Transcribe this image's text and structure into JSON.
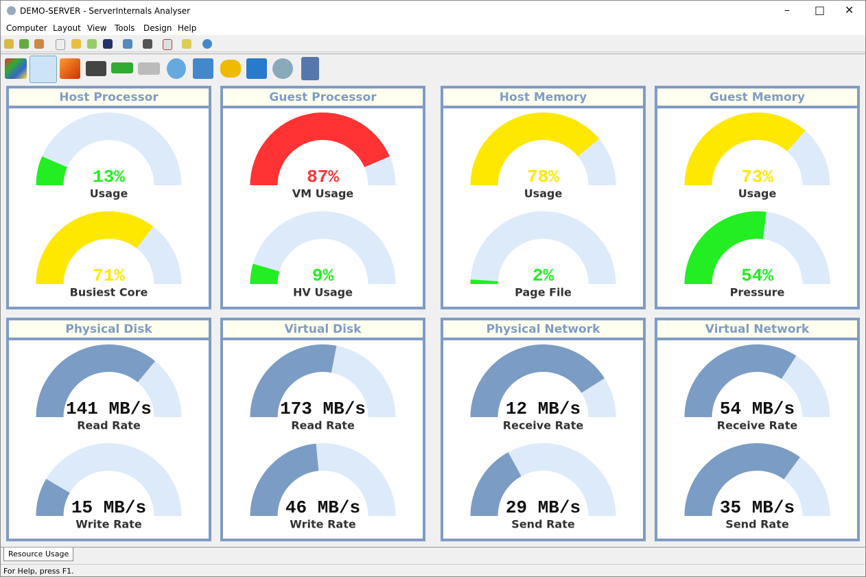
{
  "window": {
    "title": "DEMO-SERVER - ServerInternals Analyser"
  },
  "menu": [
    "Computer",
    "Layout",
    "View",
    "Tools",
    "Design",
    "Help"
  ],
  "panels": [
    {
      "title": "Host Processor",
      "gauges": [
        {
          "value": 13,
          "value_label": "13%",
          "label": "Usage",
          "color": "#22ee22",
          "text_color": "#22ee22"
        },
        {
          "value": 71,
          "value_label": "71%",
          "label": "Busiest Core",
          "color": "#ffe800",
          "text_color": "#ffe800"
        }
      ]
    },
    {
      "title": "Guest Processor",
      "gauges": [
        {
          "value": 87,
          "value_label": "87%",
          "label": "VM Usage",
          "color": "#ff3333",
          "text_color": "#ff3333"
        },
        {
          "value": 9,
          "value_label": "9%",
          "label": "HV Usage",
          "color": "#22ee22",
          "text_color": "#22ee22"
        }
      ]
    },
    {
      "title": "Host Memory",
      "gauges": [
        {
          "value": 78,
          "value_label": "78%",
          "label": "Usage",
          "color": "#ffe800",
          "text_color": "#ffe800"
        },
        {
          "value": 2,
          "value_label": "2%",
          "label": "Page File",
          "color": "#22ee22",
          "text_color": "#22ee22"
        }
      ]
    },
    {
      "title": "Guest Memory",
      "gauges": [
        {
          "value": 73,
          "value_label": "73%",
          "label": "Usage",
          "color": "#ffe800",
          "text_color": "#ffe800"
        },
        {
          "value": 54,
          "value_label": "54%",
          "label": "Pressure",
          "color": "#22ee22",
          "text_color": "#22ee22"
        }
      ]
    },
    {
      "title": "Physical Disk",
      "gauges": [
        {
          "value": 141,
          "value_label": "141 MB/s",
          "label": "Read Rate",
          "fill": 72,
          "color": "#7b9cc4",
          "text_color": "#111111"
        },
        {
          "value": 15,
          "value_label": "15 MB/s",
          "label": "Write Rate",
          "fill": 17,
          "color": "#7b9cc4",
          "text_color": "#111111"
        }
      ]
    },
    {
      "title": "Virtual Disk",
      "gauges": [
        {
          "value": 173,
          "value_label": "173 MB/s",
          "label": "Read Rate",
          "fill": 56,
          "color": "#7b9cc4",
          "text_color": "#111111"
        },
        {
          "value": 46,
          "value_label": "46 MB/s",
          "label": "Write Rate",
          "fill": 47,
          "color": "#7b9cc4",
          "text_color": "#111111"
        }
      ]
    },
    {
      "title": "Physical Network",
      "gauges": [
        {
          "value": 12,
          "value_label": "12 MB/s",
          "label": "Receive Rate",
          "fill": 82,
          "color": "#7b9cc4",
          "text_color": "#111111"
        },
        {
          "value": 29,
          "value_label": "29 MB/s",
          "label": "Send Rate",
          "fill": 34,
          "color": "#7b9cc4",
          "text_color": "#111111"
        }
      ]
    },
    {
      "title": "Virtual Network",
      "gauges": [
        {
          "value": 54,
          "value_label": "54 MB/s",
          "label": "Receive Rate",
          "fill": 68,
          "color": "#7b9cc4",
          "text_color": "#111111"
        },
        {
          "value": 35,
          "value_label": "35 MB/s",
          "label": "Send Rate",
          "fill": 70,
          "color": "#7b9cc4",
          "text_color": "#111111"
        }
      ]
    }
  ],
  "tabs": [
    "Resource Usage"
  ],
  "status": "For Help, press F1."
}
